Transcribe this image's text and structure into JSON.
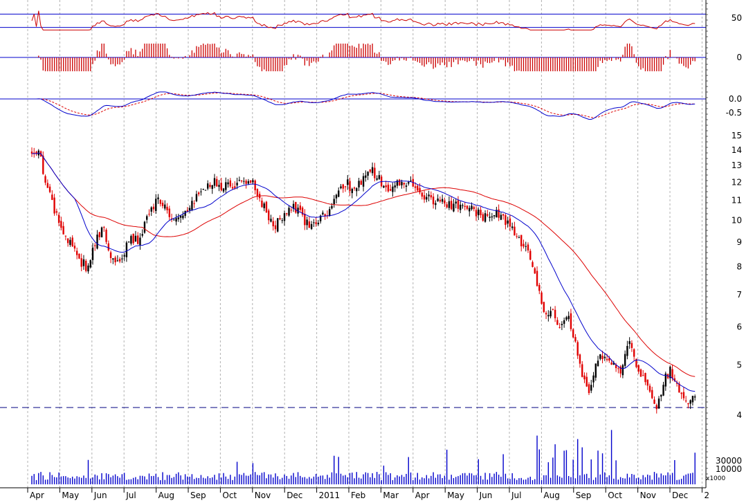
{
  "chart_data": {
    "type": "stock-candlestick-multi-panel",
    "title": "",
    "colors": {
      "up": "#000000",
      "down": "#e00000",
      "sma_fast": "#0000cc",
      "sma_slow": "#dd0000",
      "rsi": "#cc0000",
      "hist": "#cc0000",
      "macd": "#0000cc",
      "signal": "#dd0000",
      "volume": "#0000cc",
      "hline": "#0000cc",
      "grid": "#b0b0b0"
    },
    "x_months": [
      "Apr",
      "May",
      "Jun",
      "Jul",
      "Aug",
      "Sep",
      "Oct",
      "Nov",
      "Dec",
      "2011",
      "Feb",
      "Mar",
      "Apr",
      "May",
      "Jun",
      "Jul",
      "Aug",
      "Sep",
      "Oct",
      "Nov",
      "Dec",
      "2"
    ],
    "x_month_index": [
      0,
      1,
      2,
      3,
      4,
      5,
      6,
      7,
      8,
      9,
      10,
      11,
      12,
      13,
      14,
      15,
      16,
      17,
      18,
      19,
      20,
      21
    ],
    "price_panel": {
      "scale": "log",
      "ylim": [
        4,
        15
      ],
      "y_ticks": [
        4,
        5,
        6,
        7,
        8,
        9,
        10,
        11,
        12,
        13,
        14,
        15
      ],
      "support_level": 4.08,
      "anchors": [
        [
          0.0,
          13.6
        ],
        [
          0.25,
          13.9
        ],
        [
          0.45,
          11.8
        ],
        [
          0.7,
          10.5
        ],
        [
          0.95,
          9.4
        ],
        [
          1.2,
          9.0
        ],
        [
          1.45,
          8.3
        ],
        [
          1.7,
          8.0
        ],
        [
          1.95,
          8.9
        ],
        [
          2.2,
          9.8
        ],
        [
          2.4,
          8.6
        ],
        [
          2.6,
          8.2
        ],
        [
          2.8,
          8.4
        ],
        [
          3.05,
          9.3
        ],
        [
          3.3,
          9.0
        ],
        [
          3.55,
          10.0
        ],
        [
          3.85,
          11.0
        ],
        [
          4.15,
          10.6
        ],
        [
          4.5,
          10.1
        ],
        [
          4.8,
          10.4
        ],
        [
          5.1,
          11.1
        ],
        [
          5.4,
          11.7
        ],
        [
          5.7,
          12.0
        ],
        [
          6.0,
          11.7
        ],
        [
          6.3,
          11.9
        ],
        [
          6.6,
          11.8
        ],
        [
          6.85,
          12.2
        ],
        [
          7.05,
          11.2
        ],
        [
          7.3,
          10.5
        ],
        [
          7.55,
          9.6
        ],
        [
          7.85,
          10.4
        ],
        [
          8.1,
          10.8
        ],
        [
          8.4,
          10.2
        ],
        [
          8.65,
          9.7
        ],
        [
          8.95,
          10.0
        ],
        [
          9.2,
          10.3
        ],
        [
          9.5,
          11.2
        ],
        [
          9.8,
          11.9
        ],
        [
          10.1,
          11.6
        ],
        [
          10.35,
          12.3
        ],
        [
          10.6,
          12.7
        ],
        [
          10.85,
          12.1
        ],
        [
          11.1,
          11.6
        ],
        [
          11.35,
          12.0
        ],
        [
          11.6,
          12.1
        ],
        [
          11.85,
          11.8
        ],
        [
          12.1,
          11.2
        ],
        [
          12.4,
          11.1
        ],
        [
          12.7,
          10.9
        ],
        [
          13.0,
          10.8
        ],
        [
          13.3,
          10.7
        ],
        [
          13.6,
          10.6
        ],
        [
          13.9,
          10.3
        ],
        [
          14.2,
          10.1
        ],
        [
          14.5,
          10.4
        ],
        [
          14.75,
          10.0
        ],
        [
          15.0,
          9.4
        ],
        [
          15.25,
          9.0
        ],
        [
          15.5,
          8.4
        ],
        [
          15.75,
          7.2
        ],
        [
          16.0,
          6.2
        ],
        [
          16.2,
          6.6
        ],
        [
          16.45,
          6.0
        ],
        [
          16.7,
          6.3
        ],
        [
          16.95,
          5.4
        ],
        [
          17.2,
          4.6
        ],
        [
          17.35,
          4.3
        ],
        [
          17.55,
          5.0
        ],
        [
          17.8,
          5.3
        ],
        [
          18.05,
          5.0
        ],
        [
          18.3,
          4.8
        ],
        [
          18.55,
          5.6
        ],
        [
          18.75,
          5.2
        ],
        [
          19.0,
          4.7
        ],
        [
          19.25,
          4.4
        ],
        [
          19.45,
          4.1
        ],
        [
          19.7,
          4.7
        ],
        [
          19.9,
          4.9
        ],
        [
          20.1,
          4.5
        ],
        [
          20.35,
          4.15
        ],
        [
          20.55,
          4.3
        ],
        [
          20.65,
          4.35
        ]
      ]
    },
    "rsi_panel": {
      "y_ticks": [
        50
      ],
      "levels": [
        30,
        70
      ]
    },
    "hist_panel": {
      "y_ticks": [
        0
      ]
    },
    "macd_panel": {
      "y_ticks": [
        0.0,
        -0.5
      ],
      "y_tick_labels": [
        "0.0",
        "-0.5"
      ]
    },
    "volume_panel": {
      "y_ticks": [
        30000,
        10000
      ],
      "y_tick_labels": [
        "30000",
        "10000"
      ],
      "unit_label": "x1000"
    }
  }
}
